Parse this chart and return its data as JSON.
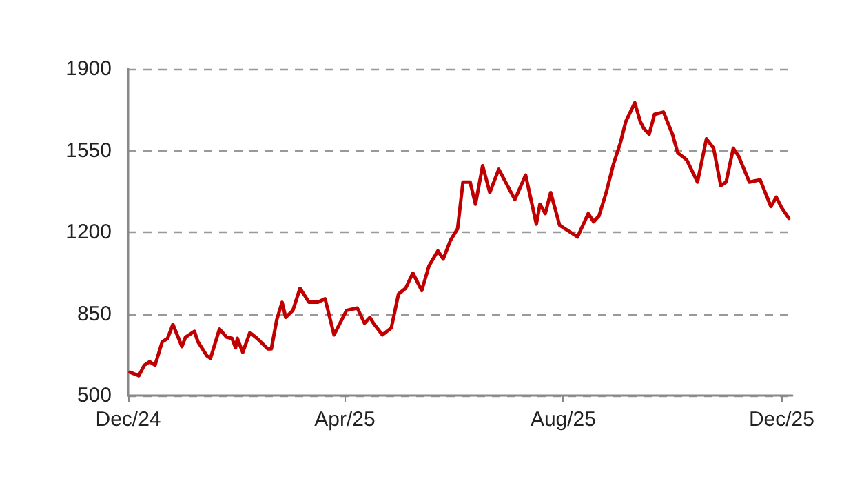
{
  "chart_data": {
    "type": "line",
    "x": [
      "2024-12-02",
      "2024-12-07",
      "2024-12-10",
      "2024-12-13",
      "2024-12-16",
      "2024-12-20",
      "2024-12-23",
      "2024-12-26",
      "2024-12-31",
      "2025-01-02",
      "2025-01-07",
      "2025-01-09",
      "2025-01-14",
      "2025-01-16",
      "2025-01-21",
      "2025-01-25",
      "2025-01-28",
      "2025-01-30",
      "2025-01-31",
      "2025-02-03",
      "2025-02-07",
      "2025-02-11",
      "2025-02-17",
      "2025-02-19",
      "2025-02-22",
      "2025-02-25",
      "2025-02-27",
      "2025-03-03",
      "2025-03-07",
      "2025-03-12",
      "2025-03-17",
      "2025-03-21",
      "2025-03-26",
      "2025-04-02",
      "2025-04-08",
      "2025-04-12",
      "2025-04-15",
      "2025-04-17",
      "2025-04-22",
      "2025-04-27",
      "2025-05-01",
      "2025-05-05",
      "2025-05-09",
      "2025-05-14",
      "2025-05-18",
      "2025-05-23",
      "2025-05-26",
      "2025-05-30",
      "2025-06-03",
      "2025-06-06",
      "2025-06-10",
      "2025-06-13",
      "2025-06-17",
      "2025-06-21",
      "2025-06-26",
      "2025-07-05",
      "2025-07-11",
      "2025-07-17",
      "2025-07-19",
      "2025-07-22",
      "2025-07-25",
      "2025-07-30",
      "2025-08-09",
      "2025-08-15",
      "2025-08-18",
      "2025-08-21",
      "2025-08-25",
      "2025-08-29",
      "2025-09-02",
      "2025-09-05",
      "2025-09-10",
      "2025-09-13",
      "2025-09-15",
      "2025-09-18",
      "2025-09-21",
      "2025-09-26",
      "2025-10-01",
      "2025-10-04",
      "2025-10-09",
      "2025-10-15",
      "2025-10-20",
      "2025-10-24",
      "2025-10-28",
      "2025-10-31",
      "2025-11-04",
      "2025-11-07",
      "2025-11-13",
      "2025-11-19",
      "2025-11-25",
      "2025-11-28",
      "2025-12-01",
      "2025-12-05"
    ],
    "series": [
      {
        "color": "#c00000",
        "values": [
          600,
          585,
          630,
          645,
          630,
          730,
          745,
          805,
          710,
          750,
          775,
          730,
          670,
          660,
          785,
          750,
          745,
          705,
          745,
          685,
          770,
          745,
          700,
          700,
          825,
          900,
          835,
          865,
          960,
          900,
          900,
          915,
          760,
          865,
          875,
          810,
          835,
          810,
          760,
          790,
          935,
          960,
          1025,
          950,
          1055,
          1120,
          1085,
          1165,
          1215,
          1415,
          1415,
          1320,
          1485,
          1370,
          1470,
          1340,
          1445,
          1235,
          1320,
          1280,
          1370,
          1230,
          1180,
          1280,
          1245,
          1270,
          1370,
          1490,
          1585,
          1675,
          1755,
          1675,
          1645,
          1620,
          1705,
          1715,
          1620,
          1540,
          1510,
          1415,
          1600,
          1560,
          1400,
          1415,
          1560,
          1525,
          1415,
          1425,
          1310,
          1350,
          1305,
          1260
        ]
      }
    ],
    "xlim": [
      "2024-12-01",
      "2025-12-07"
    ],
    "xticks": [
      {
        "value": "2024-12-01",
        "label": "Dec/24"
      },
      {
        "value": "2025-04-01",
        "label": "Apr/25"
      },
      {
        "value": "2025-08-01",
        "label": "Aug/25"
      },
      {
        "value": "2025-12-01",
        "label": "Dec/25"
      }
    ],
    "ylim": [
      500,
      1900
    ],
    "yticks": [
      500,
      850,
      1200,
      1550,
      1900
    ],
    "grid": "y",
    "marker": "none",
    "line_style": "solid"
  }
}
